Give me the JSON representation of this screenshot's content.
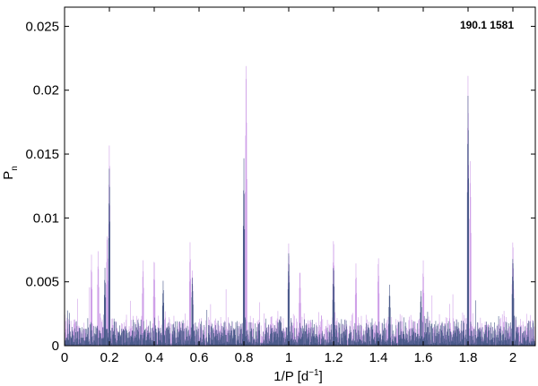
{
  "chart_data": {
    "type": "line",
    "title": "",
    "annotation": "190.1 1581",
    "xlabel": {
      "base": "1/P  [d",
      "sup": "−1",
      "end": "]"
    },
    "ylabel": {
      "base": "P",
      "sub": "n"
    },
    "xlim": [
      0,
      2.1
    ],
    "ylim": [
      0,
      0.0265
    ],
    "xticks": [
      0,
      0.2,
      0.4,
      0.6,
      0.8,
      1,
      1.2,
      1.4,
      1.6,
      1.8,
      2
    ],
    "xtick_labels": [
      "0",
      "0.2",
      "0.4",
      "0.6",
      "0.8",
      "1",
      "1.2",
      "1.4",
      "1.6",
      "1.8",
      "2"
    ],
    "yticks": [
      0,
      0.005,
      0.01,
      0.015,
      0.02,
      0.025
    ],
    "ytick_labels": [
      "0",
      "0.005",
      "0.01",
      "0.015",
      "0.02",
      "0.025"
    ],
    "grid": false,
    "colors": {
      "dark_series": "#4a5a8a",
      "light_series": "#cfa0e8"
    },
    "series": [
      {
        "color_key": "light_series",
        "noise_level": 0.0022,
        "peaks": [
          [
            0.2,
            0.0164
          ],
          [
            0.19,
            0.0093
          ],
          [
            0.81,
            0.0236
          ],
          [
            0.8,
            0.011
          ],
          [
            1.8,
            0.0217
          ],
          [
            1.81,
            0.015
          ],
          [
            1.2,
            0.0089
          ],
          [
            1.0,
            0.0083
          ],
          [
            2.0,
            0.0087
          ],
          [
            0.56,
            0.0082
          ],
          [
            0.15,
            0.0075
          ],
          [
            0.4,
            0.0072
          ],
          [
            1.4,
            0.0073
          ],
          [
            0.12,
            0.0072
          ],
          [
            0.35,
            0.0069
          ],
          [
            0.57,
            0.0062
          ],
          [
            1.6,
            0.0068
          ],
          [
            1.05,
            0.0063
          ],
          [
            1.3,
            0.0065
          ]
        ]
      },
      {
        "color_key": "dark_series",
        "noise_level": 0.0018,
        "peaks": [
          [
            0.2,
            0.0145
          ],
          [
            0.8,
            0.0148
          ],
          [
            1.8,
            0.0201
          ],
          [
            1.0,
            0.0075
          ],
          [
            2.0,
            0.0073
          ],
          [
            1.2,
            0.0066
          ],
          [
            0.57,
            0.0056
          ],
          [
            0.44,
            0.0052
          ],
          [
            0.18,
            0.0062
          ],
          [
            1.45,
            0.0048
          ],
          [
            1.59,
            0.0045
          ]
        ]
      }
    ]
  }
}
